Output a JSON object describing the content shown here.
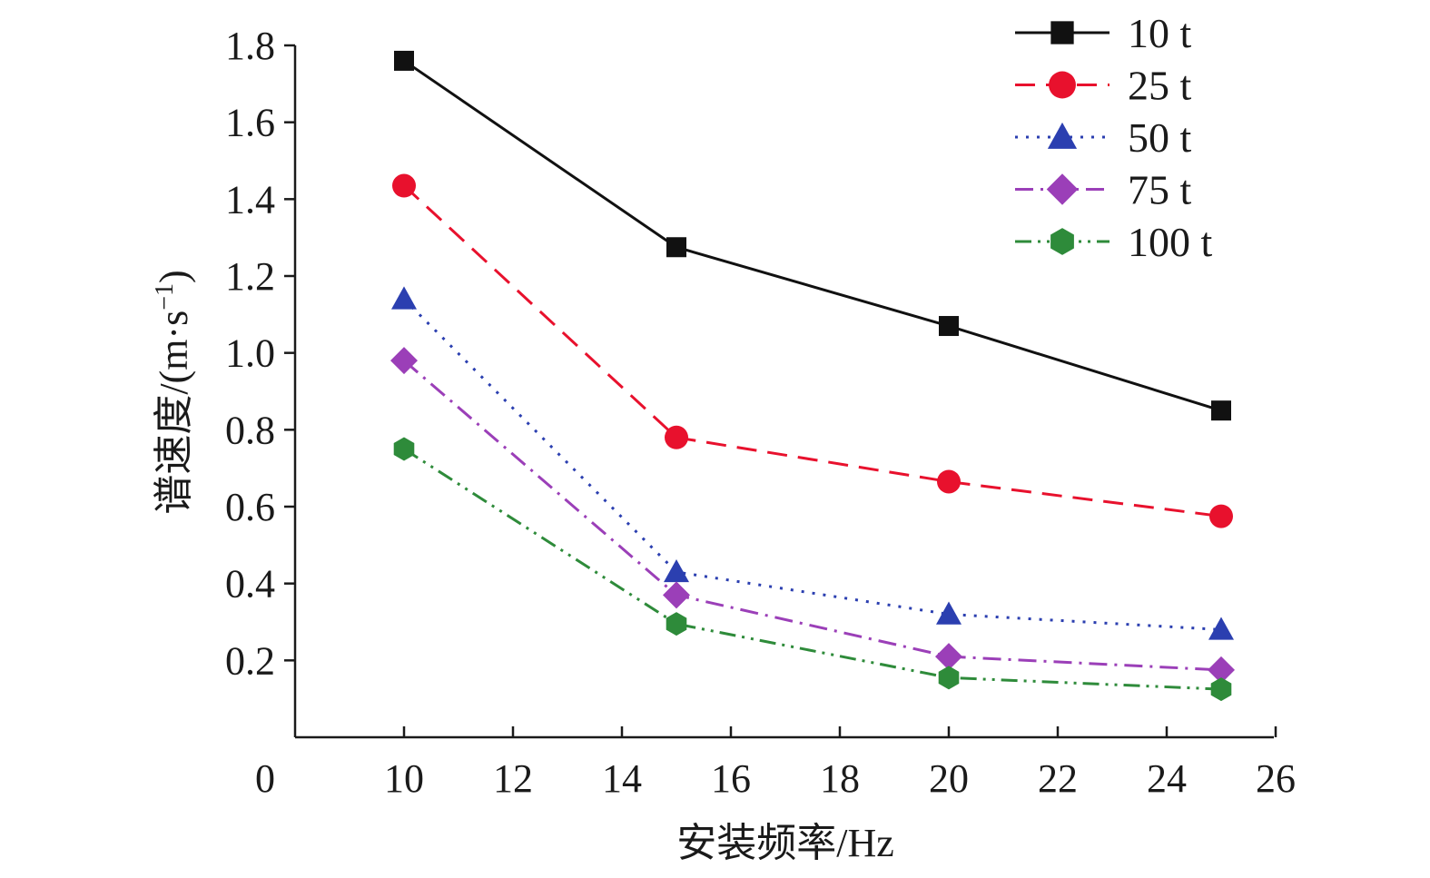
{
  "chart_data": {
    "type": "line",
    "title": "",
    "xlabel": "安装频率/Hz",
    "ylabel": "谱速度/(m·s",
    "ylabel_sup": "−1",
    "ylabel_close": ")",
    "xlim": [
      0,
      26
    ],
    "ylim": [
      0,
      1.8
    ],
    "x_break": "between 0 and 10",
    "x_ticks": [
      {
        "value": 0,
        "label": "0"
      },
      {
        "value": 10,
        "label": "10"
      },
      {
        "value": 12,
        "label": "12"
      },
      {
        "value": 14,
        "label": "14"
      },
      {
        "value": 16,
        "label": "16"
      },
      {
        "value": 18,
        "label": "18"
      },
      {
        "value": 20,
        "label": "20"
      },
      {
        "value": 22,
        "label": "22"
      },
      {
        "value": 24,
        "label": "24"
      },
      {
        "value": 26,
        "label": "26"
      }
    ],
    "y_ticks": [
      {
        "value": 0.2,
        "label": "0.2"
      },
      {
        "value": 0.4,
        "label": "0.4"
      },
      {
        "value": 0.6,
        "label": "0.6"
      },
      {
        "value": 0.8,
        "label": "0.8"
      },
      {
        "value": 1.0,
        "label": "1.0"
      },
      {
        "value": 1.2,
        "label": "1.2"
      },
      {
        "value": 1.4,
        "label": "1.4"
      },
      {
        "value": 1.6,
        "label": "1.6"
      },
      {
        "value": 1.8,
        "label": "1.8"
      }
    ],
    "grid": false,
    "legend_position": "top-right",
    "x": [
      10,
      15,
      20,
      25
    ],
    "series": [
      {
        "name": "10 t",
        "values": [
          1.76,
          1.275,
          1.07,
          0.85
        ],
        "color": "#111111",
        "dash": "solid",
        "marker": "square",
        "id": "10t"
      },
      {
        "name": "25 t",
        "values": [
          1.435,
          0.78,
          0.665,
          0.575
        ],
        "color": "#e8112d",
        "dash": "dashed",
        "marker": "circle",
        "id": "25t"
      },
      {
        "name": "50 t",
        "values": [
          1.14,
          0.43,
          0.32,
          0.28
        ],
        "color": "#2b3fb0",
        "dash": "dotted",
        "marker": "triangle",
        "id": "50t"
      },
      {
        "name": "75 t",
        "values": [
          0.98,
          0.37,
          0.21,
          0.175
        ],
        "color": "#9b3fb8",
        "dash": "dashdot",
        "marker": "diamond",
        "id": "75t"
      },
      {
        "name": "100 t",
        "values": [
          0.75,
          0.295,
          0.155,
          0.125
        ],
        "color": "#2e8b3a",
        "dash": "dashdotdot",
        "marker": "hexagon",
        "id": "100t"
      }
    ]
  }
}
